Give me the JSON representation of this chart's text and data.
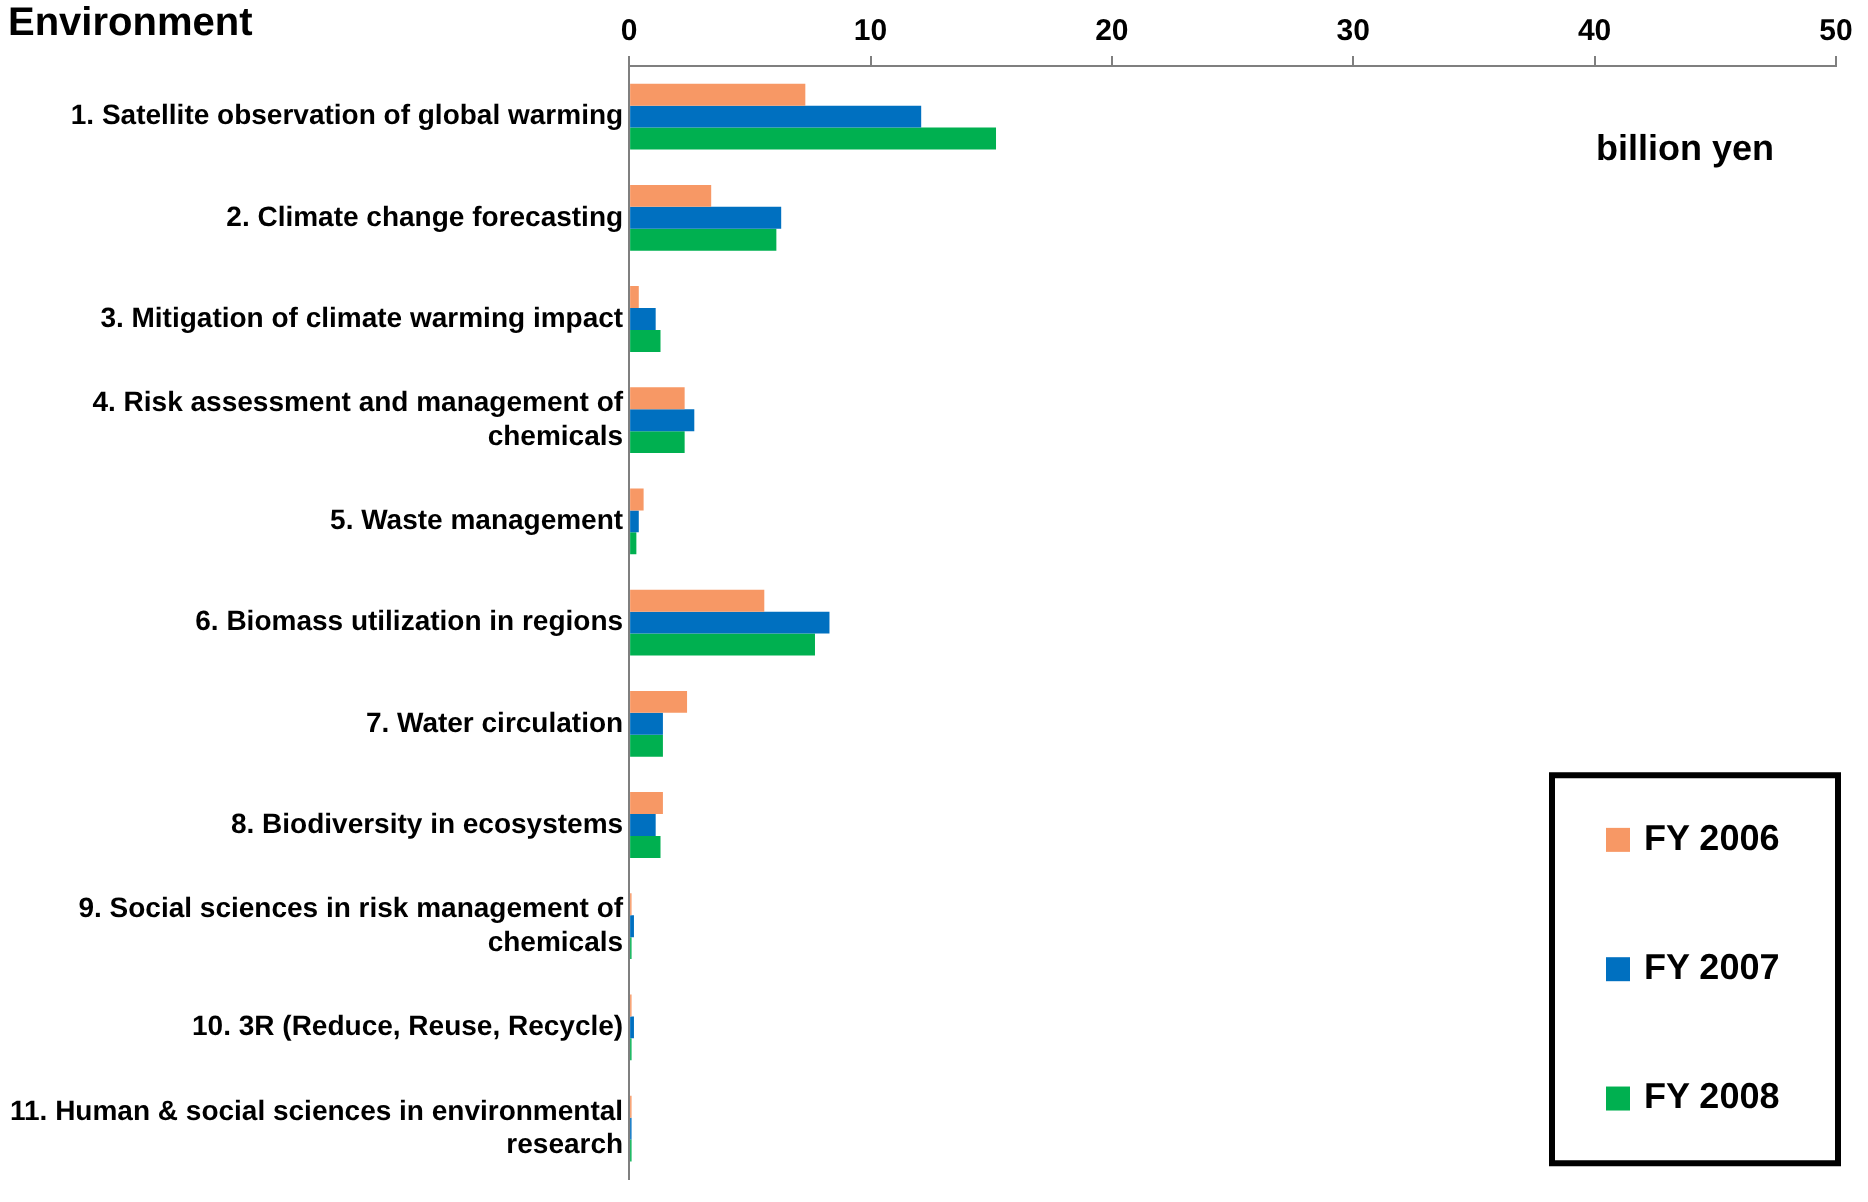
{
  "chart_data": {
    "type": "bar",
    "orientation": "horizontal",
    "title": "Environment",
    "categories": [
      "1. Satellite observation of global warming",
      "2. Climate change forecasting",
      "3. Mitigation of climate warming impact",
      "4. Risk assessment and management of chemicals",
      "5. Waste management",
      "6. Biomass utilization in regions",
      "7. Water circulation",
      "8. Biodiversity in ecosystems",
      "9. Social sciences in risk management of chemicals",
      "10. 3R (Reduce, Reuse, Recycle)",
      "11. Human & social sciences in environmental research"
    ],
    "series": [
      {
        "name": "FY 2006",
        "color": "#f79865",
        "values": [
          7.3,
          3.4,
          0.4,
          2.3,
          0.6,
          5.6,
          2.4,
          1.4,
          0.1,
          0.1,
          0.1
        ]
      },
      {
        "name": "FY 2007",
        "color": "#0070c0",
        "values": [
          12.1,
          6.3,
          1.1,
          2.7,
          0.4,
          8.3,
          1.4,
          1.1,
          0.2,
          0.2,
          0.1
        ]
      },
      {
        "name": "FY 2008",
        "color": "#00b050",
        "values": [
          15.2,
          6.1,
          1.3,
          2.3,
          0.3,
          7.7,
          1.4,
          1.3,
          0.1,
          0.1,
          0.1
        ]
      }
    ],
    "xlim": [
      0,
      50
    ],
    "xticks": [
      0,
      10,
      20,
      30,
      40,
      50
    ],
    "grid": false,
    "legend": "bottom right",
    "annotations": [
      "billion yen"
    ]
  }
}
